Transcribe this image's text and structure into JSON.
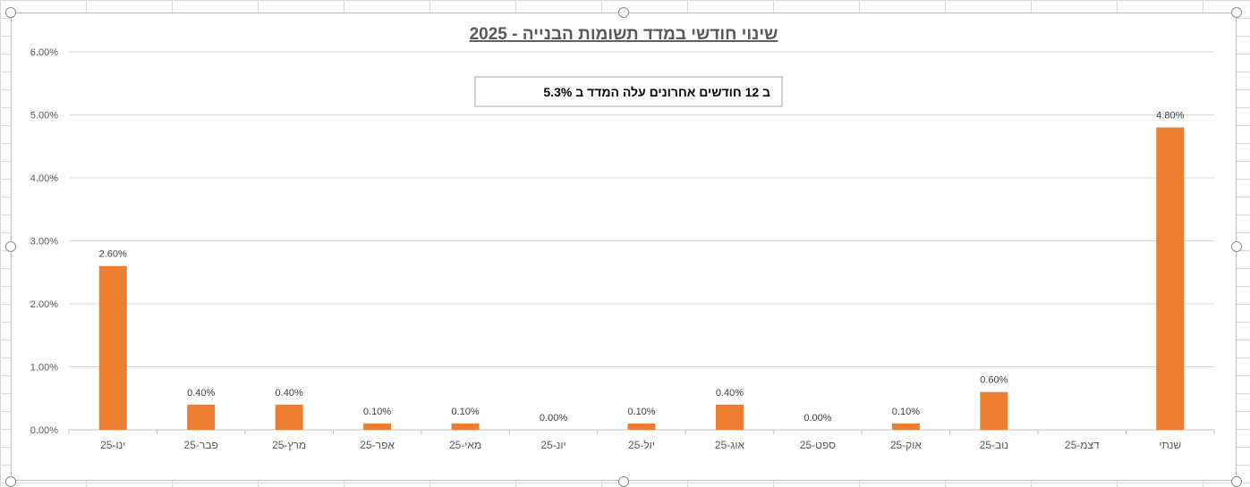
{
  "chart_data": {
    "type": "bar",
    "title": "שינוי חודשי במדד תשומות הבנייה - 2025",
    "annotation": "ב 12 חודשים אחרונים עלה המדד ב  5.3%",
    "xlabel": "",
    "ylabel": "",
    "ylim": [
      0,
      0.06
    ],
    "yticks": [
      0,
      0.01,
      0.02,
      0.03,
      0.04,
      0.05,
      0.06
    ],
    "ytick_labels": [
      "0.00%",
      "1.00%",
      "2.00%",
      "3.00%",
      "4.00%",
      "5.00%",
      "6.00%"
    ],
    "grid": true,
    "legend": "none",
    "bar_color": "#ED7D31",
    "categories": [
      "ינו-25",
      "פבר-25",
      "מרץ-25",
      "אפר-25",
      "מאי-25",
      "יונ-25",
      "יול-25",
      "אוג-25",
      "ספט-25",
      "אוק-25",
      "נוב-25",
      "דצמ-25",
      "שנתי"
    ],
    "values": [
      0.026,
      0.004,
      0.004,
      0.001,
      0.001,
      0.0,
      0.001,
      0.004,
      0.0,
      0.001,
      0.006,
      null,
      0.048
    ],
    "data_labels": [
      "2.60%",
      "0.40%",
      "0.40%",
      "0.10%",
      "0.10%",
      "0.00%",
      "0.10%",
      "0.40%",
      "0.00%",
      "0.10%",
      "0.60%",
      "",
      "4.80%"
    ]
  }
}
